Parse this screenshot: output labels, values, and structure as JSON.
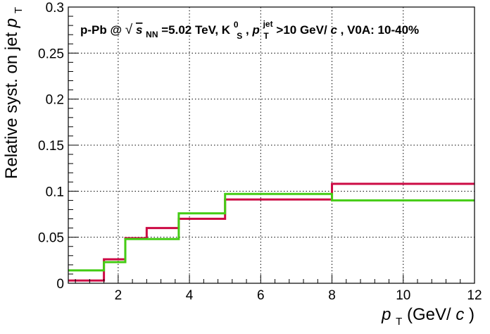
{
  "chart_data": {
    "type": "line",
    "title": {
      "prefix": "p-Pb @ ",
      "sqrt_symbol": "√",
      "s": "s",
      "nn": "NN",
      "energy": "=5.02 TeV, K",
      "k_sup": "0",
      "k_sub": "S",
      "sep": ", ",
      "p": "p",
      "p_sup": "jet",
      "p_sub": "T",
      "rest_before_c": ">10 GeV/",
      "c": "c",
      "rest_after_c": ", V0A: 10-40%"
    },
    "xlabel": {
      "p": "p",
      "sub": "T",
      "rest": " (GeV/",
      "c": "c",
      "close": ")"
    },
    "ylabel": {
      "text": "Relative syst. on jet ",
      "p": "p",
      "sub": "T"
    },
    "xlim": [
      0.6,
      12
    ],
    "ylim": [
      0,
      0.3
    ],
    "xticks": [
      2,
      4,
      6,
      8,
      10,
      12
    ],
    "xtick_labels": [
      "2",
      "4",
      "6",
      "8",
      "10",
      "12"
    ],
    "yticks": [
      0,
      0.05,
      0.1,
      0.15,
      0.2,
      0.25,
      0.3
    ],
    "ytick_labels": [
      "0",
      "0.05",
      "0.1",
      "0.15",
      "0.2",
      "0.25",
      "0.3"
    ],
    "grid": true,
    "legend": "none",
    "series": [
      {
        "color": "#cc0a44",
        "bin_edges": [
          0.6,
          1.6,
          2.2,
          2.8,
          3.7,
          5,
          8,
          12
        ],
        "values": [
          0.003,
          0.026,
          0.049,
          0.06,
          0.07,
          0.091,
          0.108
        ]
      },
      {
        "color": "#44cc14",
        "bin_edges": [
          0.6,
          1.6,
          2.2,
          2.8,
          3.7,
          5,
          8,
          12
        ],
        "values": [
          0.014,
          0.023,
          0.048,
          0.048,
          0.076,
          0.097,
          0.09
        ]
      }
    ]
  }
}
